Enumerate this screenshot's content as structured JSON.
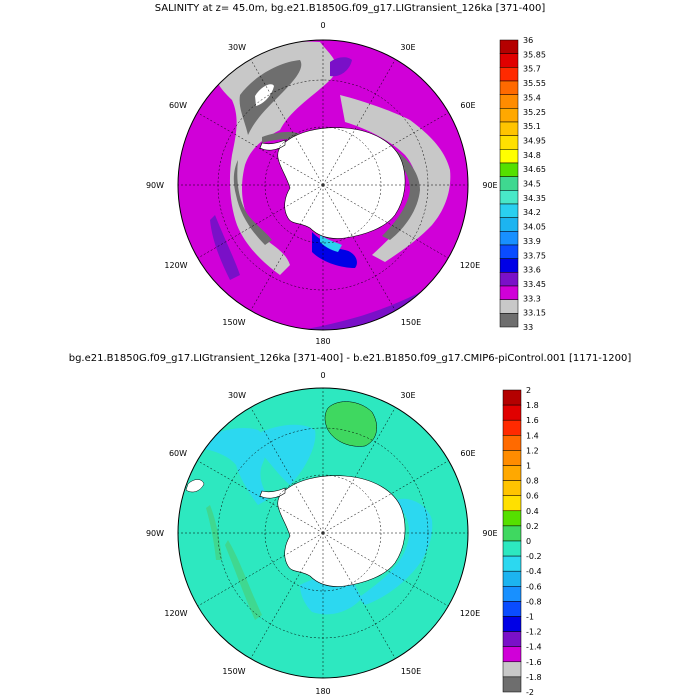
{
  "top_panel": {
    "title": "SALINITY at z=  45.0m, bg.e21.B1850G.f09_g17.LIGtransient_126ka [371-400]",
    "lon_labels": [
      "0",
      "30E",
      "60E",
      "90E",
      "120E",
      "150E",
      "180",
      "150W",
      "120W",
      "90W",
      "60W",
      "30W"
    ],
    "colorbar": {
      "labels": [
        "36",
        "35.85",
        "35.7",
        "35.55",
        "35.4",
        "35.25",
        "35.1",
        "34.95",
        "34.8",
        "34.65",
        "34.5",
        "34.35",
        "34.2",
        "34.05",
        "33.9",
        "33.75",
        "33.6",
        "33.45",
        "33.3",
        "33.15",
        "33"
      ],
      "colors": [
        "#b40000",
        "#e00000",
        "#ff2a00",
        "#ff6a00",
        "#ff8c00",
        "#ffa800",
        "#ffc400",
        "#ffe000",
        "#ffff00",
        "#55e000",
        "#3fd890",
        "#48e8c8",
        "#2ad0f0",
        "#1cb4f0",
        "#1890ff",
        "#0a4cff",
        "#0000e6",
        "#7a10c8",
        "#d000d8",
        "#c8c8c8",
        "#6e6e6e"
      ]
    },
    "colors": {
      "ocean_main": "#d000d8",
      "ocean_mid": "#7a10c8",
      "ocean_low": "#0000e6",
      "light_gray": "#c8c8c8",
      "dark_gray": "#6e6e6e",
      "cyan": "#2ad0f0",
      "land": "#ffffff"
    }
  },
  "bottom_panel": {
    "title": "bg.e21.B1850G.f09_g17.LIGtransient_126ka [371-400] - b.e21.B1850.f09_g17.CMIP6-piControl.001 [1171-1200]",
    "lon_labels": [
      "0",
      "30E",
      "60E",
      "90E",
      "120E",
      "150E",
      "180",
      "150W",
      "120W",
      "90W",
      "60W",
      "30W"
    ],
    "colorbar": {
      "labels": [
        "2",
        "1.8",
        "1.6",
        "1.4",
        "1.2",
        "1",
        "0.8",
        "0.6",
        "0.4",
        "0.2",
        "0",
        "-0.2",
        "-0.4",
        "-0.6",
        "-0.8",
        "-1",
        "-1.2",
        "-1.4",
        "-1.6",
        "-1.8",
        "-2"
      ],
      "colors": [
        "#b40000",
        "#e00000",
        "#ff2a00",
        "#ff6a00",
        "#ff8c00",
        "#ffa800",
        "#ffc400",
        "#ffe000",
        "#55e000",
        "#3fd860",
        "#2de8c0",
        "#2cd8f0",
        "#1cb4f0",
        "#1890ff",
        "#0a4cff",
        "#0000e6",
        "#7a10c8",
        "#d000d8",
        "#c8c8c8",
        "#6e6e6e"
      ]
    },
    "colors": {
      "ocean_main": "#2de8c0",
      "ocean_cyan": "#2cd8f0",
      "green": "#3fd860",
      "land": "#ffffff"
    }
  }
}
